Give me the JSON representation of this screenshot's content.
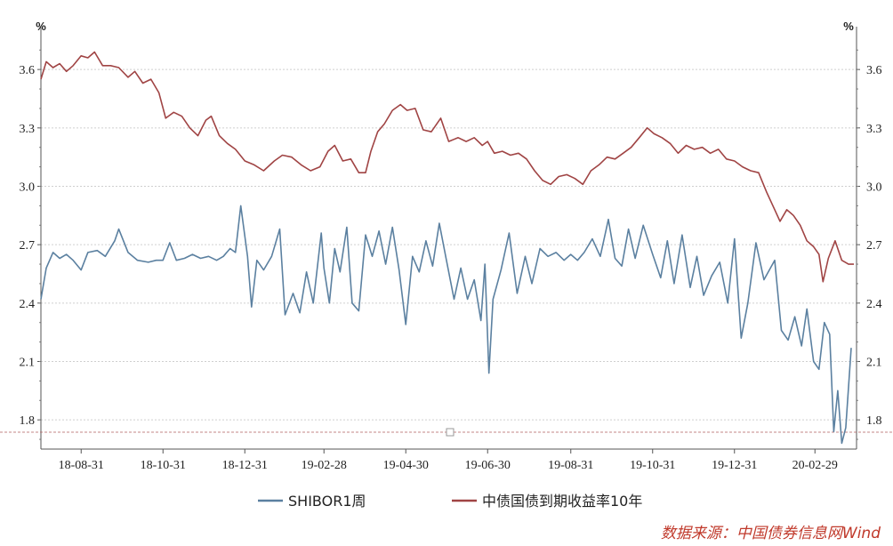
{
  "chart_data": {
    "type": "line",
    "units": {
      "left": "%",
      "right": "%"
    },
    "x_ticks": [
      "18-08-31",
      "18-10-31",
      "18-12-31",
      "19-02-28",
      "19-04-30",
      "19-06-30",
      "19-08-31",
      "19-10-31",
      "19-12-31",
      "20-02-29"
    ],
    "y_ticks": [
      "1.8",
      "2.1",
      "2.4",
      "2.7",
      "3.0",
      "3.3",
      "3.6"
    ],
    "ylim": [
      1.65,
      3.82
    ],
    "xlim": [
      "2018-08-01",
      "2020-03-31"
    ],
    "grid": "horizontal dashed",
    "legend_position": "bottom",
    "series": [
      {
        "name": "SHIBOR1周",
        "color": "#5b80a0",
        "points": [
          [
            "2018-08-01",
            2.42
          ],
          [
            "2018-08-05",
            2.58
          ],
          [
            "2018-08-10",
            2.66
          ],
          [
            "2018-08-15",
            2.63
          ],
          [
            "2018-08-20",
            2.65
          ],
          [
            "2018-08-25",
            2.62
          ],
          [
            "2018-08-31",
            2.57
          ],
          [
            "2018-09-05",
            2.66
          ],
          [
            "2018-09-12",
            2.67
          ],
          [
            "2018-09-18",
            2.64
          ],
          [
            "2018-09-25",
            2.72
          ],
          [
            "2018-09-28",
            2.78
          ],
          [
            "2018-10-05",
            2.66
          ],
          [
            "2018-10-12",
            2.62
          ],
          [
            "2018-10-20",
            2.61
          ],
          [
            "2018-10-26",
            2.62
          ],
          [
            "2018-10-31",
            2.62
          ],
          [
            "2018-11-05",
            2.71
          ],
          [
            "2018-11-10",
            2.62
          ],
          [
            "2018-11-16",
            2.63
          ],
          [
            "2018-11-22",
            2.65
          ],
          [
            "2018-11-28",
            2.63
          ],
          [
            "2018-12-04",
            2.64
          ],
          [
            "2018-12-10",
            2.62
          ],
          [
            "2018-12-15",
            2.64
          ],
          [
            "2018-12-20",
            2.68
          ],
          [
            "2018-12-24",
            2.66
          ],
          [
            "2018-12-28",
            2.9
          ],
          [
            "2019-01-02",
            2.64
          ],
          [
            "2019-01-05",
            2.38
          ],
          [
            "2019-01-09",
            2.62
          ],
          [
            "2019-01-14",
            2.57
          ],
          [
            "2019-01-20",
            2.64
          ],
          [
            "2019-01-26",
            2.78
          ],
          [
            "2019-01-30",
            2.34
          ],
          [
            "2019-02-05",
            2.45
          ],
          [
            "2019-02-10",
            2.35
          ],
          [
            "2019-02-15",
            2.56
          ],
          [
            "2019-02-20",
            2.4
          ],
          [
            "2019-02-26",
            2.76
          ],
          [
            "2019-02-28",
            2.58
          ],
          [
            "2019-03-04",
            2.4
          ],
          [
            "2019-03-08",
            2.68
          ],
          [
            "2019-03-12",
            2.56
          ],
          [
            "2019-03-17",
            2.79
          ],
          [
            "2019-03-21",
            2.4
          ],
          [
            "2019-03-26",
            2.36
          ],
          [
            "2019-03-31",
            2.75
          ],
          [
            "2019-04-05",
            2.64
          ],
          [
            "2019-04-10",
            2.77
          ],
          [
            "2019-04-15",
            2.6
          ],
          [
            "2019-04-20",
            2.79
          ],
          [
            "2019-04-25",
            2.57
          ],
          [
            "2019-04-30",
            2.29
          ],
          [
            "2019-05-05",
            2.64
          ],
          [
            "2019-05-10",
            2.56
          ],
          [
            "2019-05-15",
            2.72
          ],
          [
            "2019-05-20",
            2.59
          ],
          [
            "2019-05-25",
            2.81
          ],
          [
            "2019-05-30",
            2.63
          ],
          [
            "2019-06-05",
            2.42
          ],
          [
            "2019-06-10",
            2.58
          ],
          [
            "2019-06-15",
            2.42
          ],
          [
            "2019-06-20",
            2.52
          ],
          [
            "2019-06-25",
            2.31
          ],
          [
            "2019-06-28",
            2.6
          ],
          [
            "2019-07-01",
            2.04
          ],
          [
            "2019-07-04",
            2.42
          ],
          [
            "2019-07-10",
            2.57
          ],
          [
            "2019-07-16",
            2.76
          ],
          [
            "2019-07-22",
            2.45
          ],
          [
            "2019-07-28",
            2.64
          ],
          [
            "2019-08-02",
            2.5
          ],
          [
            "2019-08-08",
            2.68
          ],
          [
            "2019-08-14",
            2.64
          ],
          [
            "2019-08-20",
            2.66
          ],
          [
            "2019-08-26",
            2.62
          ],
          [
            "2019-08-31",
            2.65
          ],
          [
            "2019-09-05",
            2.62
          ],
          [
            "2019-09-10",
            2.66
          ],
          [
            "2019-09-16",
            2.73
          ],
          [
            "2019-09-22",
            2.64
          ],
          [
            "2019-09-28",
            2.83
          ],
          [
            "2019-10-03",
            2.63
          ],
          [
            "2019-10-08",
            2.59
          ],
          [
            "2019-10-13",
            2.78
          ],
          [
            "2019-10-18",
            2.63
          ],
          [
            "2019-10-24",
            2.8
          ],
          [
            "2019-10-31",
            2.65
          ],
          [
            "2019-11-06",
            2.53
          ],
          [
            "2019-11-11",
            2.72
          ],
          [
            "2019-11-16",
            2.5
          ],
          [
            "2019-11-22",
            2.75
          ],
          [
            "2019-11-28",
            2.48
          ],
          [
            "2019-12-03",
            2.64
          ],
          [
            "2019-12-08",
            2.44
          ],
          [
            "2019-12-14",
            2.54
          ],
          [
            "2019-12-20",
            2.61
          ],
          [
            "2019-12-26",
            2.4
          ],
          [
            "2019-12-31",
            2.73
          ],
          [
            "2020-01-05",
            2.22
          ],
          [
            "2020-01-10",
            2.4
          ],
          [
            "2020-01-16",
            2.71
          ],
          [
            "2020-01-22",
            2.52
          ],
          [
            "2020-01-30",
            2.62
          ],
          [
            "2020-02-04",
            2.26
          ],
          [
            "2020-02-09",
            2.21
          ],
          [
            "2020-02-14",
            2.33
          ],
          [
            "2020-02-19",
            2.18
          ],
          [
            "2020-02-23",
            2.37
          ],
          [
            "2020-02-28",
            2.1
          ],
          [
            "2020-03-03",
            2.06
          ],
          [
            "2020-03-07",
            2.3
          ],
          [
            "2020-03-11",
            2.24
          ],
          [
            "2020-03-14",
            1.74
          ],
          [
            "2020-03-17",
            1.95
          ],
          [
            "2020-03-20",
            1.68
          ],
          [
            "2020-03-23",
            1.76
          ],
          [
            "2020-03-27",
            2.17
          ]
        ]
      },
      {
        "name": "中债国债到期收益率10年",
        "color": "#a04444",
        "points": [
          [
            "2018-08-01",
            3.55
          ],
          [
            "2018-08-05",
            3.64
          ],
          [
            "2018-08-10",
            3.61
          ],
          [
            "2018-08-15",
            3.63
          ],
          [
            "2018-08-20",
            3.59
          ],
          [
            "2018-08-25",
            3.62
          ],
          [
            "2018-08-31",
            3.67
          ],
          [
            "2018-09-05",
            3.66
          ],
          [
            "2018-09-10",
            3.69
          ],
          [
            "2018-09-16",
            3.62
          ],
          [
            "2018-09-22",
            3.62
          ],
          [
            "2018-09-28",
            3.61
          ],
          [
            "2018-10-05",
            3.56
          ],
          [
            "2018-10-10",
            3.59
          ],
          [
            "2018-10-16",
            3.53
          ],
          [
            "2018-10-22",
            3.55
          ],
          [
            "2018-10-28",
            3.48
          ],
          [
            "2018-11-02",
            3.35
          ],
          [
            "2018-11-08",
            3.38
          ],
          [
            "2018-11-14",
            3.36
          ],
          [
            "2018-11-20",
            3.3
          ],
          [
            "2018-11-26",
            3.26
          ],
          [
            "2018-12-02",
            3.34
          ],
          [
            "2018-12-06",
            3.36
          ],
          [
            "2018-12-12",
            3.26
          ],
          [
            "2018-12-18",
            3.22
          ],
          [
            "2018-12-24",
            3.19
          ],
          [
            "2018-12-31",
            3.13
          ],
          [
            "2019-01-07",
            3.11
          ],
          [
            "2019-01-14",
            3.08
          ],
          [
            "2019-01-22",
            3.13
          ],
          [
            "2019-01-28",
            3.16
          ],
          [
            "2019-02-04",
            3.15
          ],
          [
            "2019-02-11",
            3.11
          ],
          [
            "2019-02-18",
            3.08
          ],
          [
            "2019-02-25",
            3.1
          ],
          [
            "2019-03-03",
            3.18
          ],
          [
            "2019-03-08",
            3.21
          ],
          [
            "2019-03-14",
            3.13
          ],
          [
            "2019-03-20",
            3.14
          ],
          [
            "2019-03-26",
            3.07
          ],
          [
            "2019-03-31",
            3.07
          ],
          [
            "2019-04-04",
            3.18
          ],
          [
            "2019-04-09",
            3.28
          ],
          [
            "2019-04-14",
            3.32
          ],
          [
            "2019-04-20",
            3.39
          ],
          [
            "2019-04-26",
            3.42
          ],
          [
            "2019-05-01",
            3.39
          ],
          [
            "2019-05-07",
            3.4
          ],
          [
            "2019-05-13",
            3.29
          ],
          [
            "2019-05-19",
            3.28
          ],
          [
            "2019-05-26",
            3.35
          ],
          [
            "2019-06-01",
            3.23
          ],
          [
            "2019-06-08",
            3.25
          ],
          [
            "2019-06-14",
            3.23
          ],
          [
            "2019-06-20",
            3.25
          ],
          [
            "2019-06-26",
            3.21
          ],
          [
            "2019-06-30",
            3.23
          ],
          [
            "2019-07-05",
            3.17
          ],
          [
            "2019-07-11",
            3.18
          ],
          [
            "2019-07-17",
            3.16
          ],
          [
            "2019-07-23",
            3.17
          ],
          [
            "2019-07-29",
            3.14
          ],
          [
            "2019-08-04",
            3.08
          ],
          [
            "2019-08-10",
            3.03
          ],
          [
            "2019-08-16",
            3.01
          ],
          [
            "2019-08-22",
            3.05
          ],
          [
            "2019-08-28",
            3.06
          ],
          [
            "2019-09-03",
            3.04
          ],
          [
            "2019-09-09",
            3.01
          ],
          [
            "2019-09-15",
            3.08
          ],
          [
            "2019-09-21",
            3.11
          ],
          [
            "2019-09-27",
            3.15
          ],
          [
            "2019-10-03",
            3.14
          ],
          [
            "2019-10-09",
            3.17
          ],
          [
            "2019-10-15",
            3.2
          ],
          [
            "2019-10-21",
            3.25
          ],
          [
            "2019-10-27",
            3.3
          ],
          [
            "2019-11-01",
            3.27
          ],
          [
            "2019-11-07",
            3.25
          ],
          [
            "2019-11-13",
            3.22
          ],
          [
            "2019-11-19",
            3.17
          ],
          [
            "2019-11-25",
            3.21
          ],
          [
            "2019-12-01",
            3.19
          ],
          [
            "2019-12-07",
            3.2
          ],
          [
            "2019-12-13",
            3.17
          ],
          [
            "2019-12-19",
            3.19
          ],
          [
            "2019-12-25",
            3.14
          ],
          [
            "2019-12-31",
            3.13
          ],
          [
            "2020-01-06",
            3.1
          ],
          [
            "2020-01-12",
            3.08
          ],
          [
            "2020-01-18",
            3.07
          ],
          [
            "2020-01-24",
            2.97
          ],
          [
            "2020-01-30",
            2.88
          ],
          [
            "2020-02-03",
            2.82
          ],
          [
            "2020-02-08",
            2.88
          ],
          [
            "2020-02-13",
            2.85
          ],
          [
            "2020-02-18",
            2.8
          ],
          [
            "2020-02-23",
            2.72
          ],
          [
            "2020-02-28",
            2.69
          ],
          [
            "2020-03-03",
            2.65
          ],
          [
            "2020-03-06",
            2.51
          ],
          [
            "2020-03-10",
            2.63
          ],
          [
            "2020-03-15",
            2.72
          ],
          [
            "2020-03-20",
            2.62
          ],
          [
            "2020-03-25",
            2.6
          ],
          [
            "2020-03-29",
            2.6
          ]
        ]
      }
    ]
  },
  "source_text": "数据来源：中国债券信息网Wind"
}
